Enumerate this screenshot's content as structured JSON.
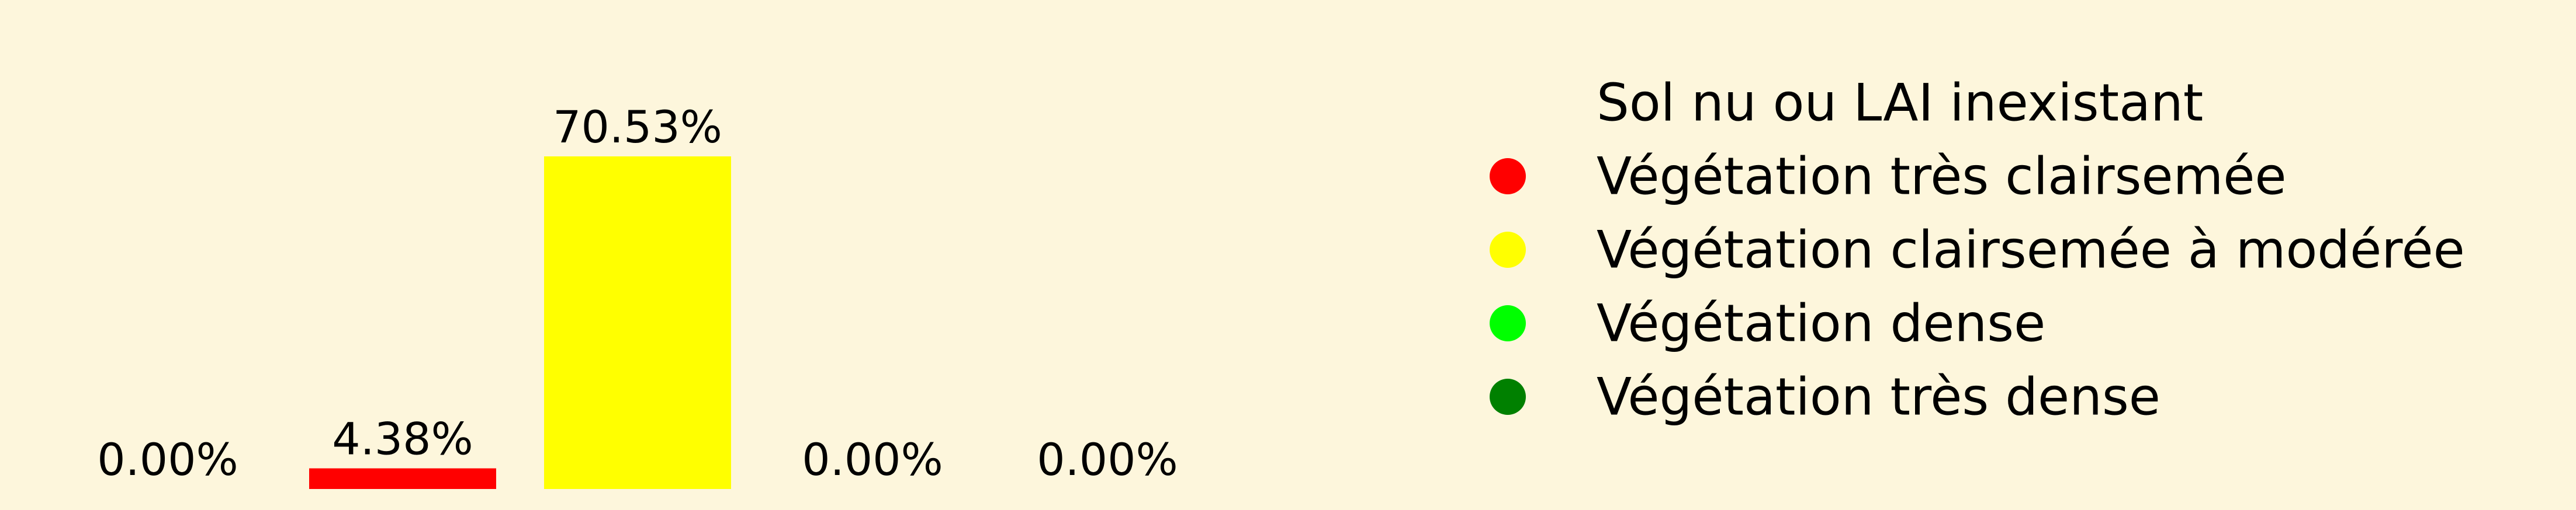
{
  "background": "#fdf6dc",
  "chart_data": {
    "type": "bar",
    "categories": [
      "Sol nu ou LAI inexistant",
      "Végétation très clairsemée",
      "Végétation clairsemée à modérée",
      "Végétation dense",
      "Végétation très dense"
    ],
    "values": [
      0.0,
      4.38,
      70.53,
      0.0,
      0.0
    ],
    "value_labels": [
      "0.00%",
      "4.38%",
      "70.53%",
      "0.00%",
      "0.00%"
    ],
    "colors": [
      "#fdf6dc",
      "#ff0000",
      "#ffff00",
      "#00ff00",
      "#008000"
    ],
    "ylim": [
      0,
      70.53
    ],
    "grid": false,
    "axes_visible": false,
    "legend": {
      "position": "right",
      "entries": [
        {
          "label": "Sol nu ou LAI inexistant",
          "color": "#fdf6dc"
        },
        {
          "label": "Végétation très clairsemée",
          "color": "#ff0000"
        },
        {
          "label": "Végétation clairsemée à modérée",
          "color": "#ffff00"
        },
        {
          "label": "Végétation dense",
          "color": "#00ff00"
        },
        {
          "label": "Végétation très dense",
          "color": "#008000"
        }
      ]
    }
  }
}
